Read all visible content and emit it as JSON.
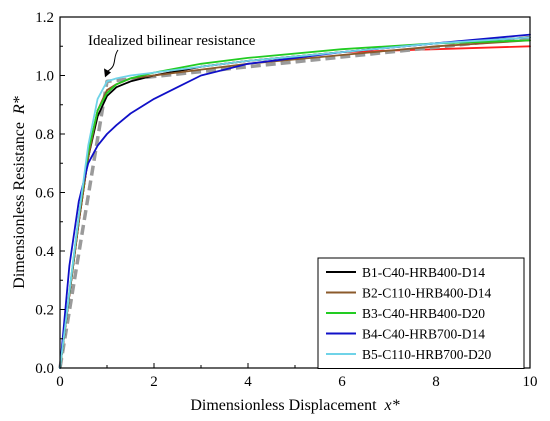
{
  "chart_data": {
    "type": "line",
    "xlabel": "Dimensionless Displacement",
    "xlabel_var": "x*",
    "ylabel": "Dimensionless Resistance",
    "ylabel_var": "R*",
    "xlim": [
      0,
      10
    ],
    "ylim": [
      0,
      1.2
    ],
    "xticks": [
      "0",
      "2",
      "4",
      "6",
      "8",
      "10"
    ],
    "yticks": [
      "0.0",
      "0.2",
      "0.4",
      "0.6",
      "0.8",
      "1.0",
      "1.2"
    ],
    "grid": false,
    "legend_position": "bottom-right",
    "annotation": "Idealized bilinear resistance",
    "series": [
      {
        "name": "B1-C40-HRB400-D14",
        "color": "#000000",
        "x": [
          0,
          0.2,
          0.4,
          0.6,
          0.8,
          1.0,
          1.2,
          1.5,
          2.0,
          3.0,
          4.0,
          6.0,
          8.0,
          10.0
        ],
        "y": [
          0,
          0.25,
          0.5,
          0.72,
          0.86,
          0.93,
          0.96,
          0.98,
          1.0,
          1.03,
          1.05,
          1.08,
          1.11,
          1.13
        ]
      },
      {
        "name": "B2-C110-HRB400-D14",
        "color": "#8B5A2B",
        "x": [
          0,
          0.2,
          0.4,
          0.6,
          0.8,
          1.0,
          1.2,
          1.5,
          2.0,
          3.0,
          4.0,
          6.0,
          8.0,
          10.0
        ],
        "y": [
          0,
          0.25,
          0.5,
          0.72,
          0.88,
          0.95,
          0.97,
          0.99,
          1.0,
          1.02,
          1.04,
          1.07,
          1.1,
          1.12
        ]
      },
      {
        "name": "B3-C40-HRB400-D20",
        "color": "#22CC22",
        "x": [
          0,
          0.2,
          0.4,
          0.6,
          0.8,
          1.0,
          1.2,
          1.5,
          2.0,
          3.0,
          4.0,
          6.0,
          8.0,
          10.0
        ],
        "y": [
          0,
          0.26,
          0.52,
          0.74,
          0.88,
          0.94,
          0.97,
          0.99,
          1.01,
          1.04,
          1.06,
          1.09,
          1.11,
          1.12
        ]
      },
      {
        "name": "B4-C40-HRB700-D14",
        "color": "#1010C8",
        "x": [
          0,
          0.2,
          0.4,
          0.6,
          0.8,
          1.0,
          1.2,
          1.5,
          2.0,
          2.5,
          3.0,
          4.0,
          6.0,
          8.0,
          10.0
        ],
        "y": [
          0,
          0.35,
          0.57,
          0.7,
          0.76,
          0.8,
          0.83,
          0.87,
          0.92,
          0.96,
          1.0,
          1.04,
          1.08,
          1.11,
          1.14
        ]
      },
      {
        "name": "B5-C110-HRB700-D20",
        "color": "#6FD3E8",
        "x": [
          0,
          0.2,
          0.4,
          0.6,
          0.8,
          1.0,
          1.2,
          1.5,
          2.0,
          3.0,
          4.0,
          6.0,
          8.0,
          10.0
        ],
        "y": [
          0,
          0.26,
          0.52,
          0.76,
          0.92,
          0.98,
          0.99,
          1.0,
          1.01,
          1.03,
          1.05,
          1.08,
          1.11,
          1.13
        ]
      },
      {
        "name": "",
        "color": "#FF2020",
        "x": [
          0,
          0.2,
          0.4,
          0.6,
          0.8,
          1.0,
          1.2,
          1.5,
          2.0,
          3.0,
          4.0,
          6.0,
          8.0,
          10.0
        ],
        "y": [
          0,
          0.25,
          0.5,
          0.72,
          0.88,
          0.95,
          0.97,
          0.99,
          1.0,
          1.03,
          1.05,
          1.08,
          1.09,
          1.1
        ]
      },
      {
        "name": "",
        "color": "#9A9A9A",
        "dashed": true,
        "x": [
          0,
          1.0,
          10.0
        ],
        "y": [
          0,
          0.98,
          1.13
        ]
      }
    ]
  }
}
